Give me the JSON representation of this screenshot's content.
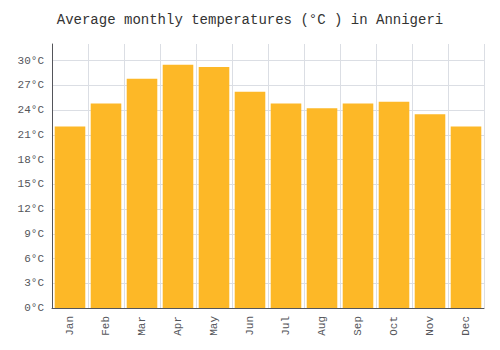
{
  "chart_data": {
    "type": "bar",
    "title": "Average monthly temperatures (°C ) in Annigeri",
    "categories": [
      "Jan",
      "Feb",
      "Mar",
      "Apr",
      "May",
      "Jun",
      "Jul",
      "Aug",
      "Sep",
      "Oct",
      "Nov",
      "Dec"
    ],
    "values": [
      22.0,
      24.8,
      27.8,
      29.5,
      29.2,
      26.2,
      24.8,
      24.2,
      24.8,
      25.0,
      23.5,
      22.0
    ],
    "color": "#FDB827",
    "ylim": [
      0,
      32
    ],
    "yticks": [
      {
        "value": 0,
        "label": "0°C"
      },
      {
        "value": 3,
        "label": "3°C"
      },
      {
        "value": 6,
        "label": "6°C"
      },
      {
        "value": 9,
        "label": "9°C"
      },
      {
        "value": 12,
        "label": "12°C"
      },
      {
        "value": 15,
        "label": "15°C"
      },
      {
        "value": 18,
        "label": "18°C"
      },
      {
        "value": 21,
        "label": "21°C"
      },
      {
        "value": 24,
        "label": "24°C"
      },
      {
        "value": 27,
        "label": "27°C"
      },
      {
        "value": 30,
        "label": "30°C"
      }
    ],
    "grid": true
  }
}
